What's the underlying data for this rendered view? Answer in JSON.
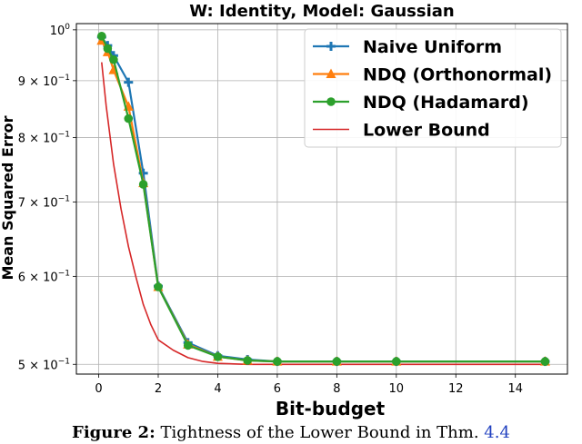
{
  "chart_data": {
    "type": "line",
    "title": "W: Identity, Model: Gaussian",
    "xlabel": "Bit-budget",
    "ylabel": "Mean Squared Error",
    "xlim": [
      -0.75,
      15.75
    ],
    "ylim": [
      0.49,
      1.013
    ],
    "yscale": "log",
    "grid": true,
    "legend_position": "top-right",
    "xticks": [
      0,
      2,
      4,
      6,
      8,
      10,
      12,
      14
    ],
    "yticks": [
      {
        "value": 1.0,
        "base": "10",
        "exp": "0"
      },
      {
        "value": 0.9,
        "base": "9 × 10",
        "exp": "−1"
      },
      {
        "value": 0.8,
        "base": "8 × 10",
        "exp": "−1"
      },
      {
        "value": 0.7,
        "base": "7 × 10",
        "exp": "−1"
      },
      {
        "value": 0.6,
        "base": "6 × 10",
        "exp": "−1"
      },
      {
        "value": 0.5,
        "base": "5 × 10",
        "exp": "−1"
      }
    ],
    "series": [
      {
        "name": "Naive Uniform",
        "color": "#1f77b4",
        "marker": "plus",
        "x": [
          0.1,
          0.3,
          0.5,
          1,
          1.5,
          2,
          3,
          4,
          5,
          6,
          8,
          10,
          15
        ],
        "y": [
          0.985,
          0.968,
          0.948,
          0.897,
          0.743,
          0.588,
          0.523,
          0.509,
          0.505,
          0.503,
          0.503,
          0.503,
          0.503
        ]
      },
      {
        "name": "NDQ (Orthonormal)",
        "color": "#ff7f0e",
        "marker": "triangle",
        "x": [
          0.1,
          0.3,
          0.5,
          1,
          1.5,
          2,
          3,
          4,
          5,
          6,
          8,
          10,
          15
        ],
        "y": [
          0.978,
          0.955,
          0.92,
          0.853,
          0.728,
          0.587,
          0.521,
          0.508,
          0.504,
          0.503,
          0.503,
          0.503,
          0.503
        ]
      },
      {
        "name": "NDQ (Hadamard)",
        "color": "#2ca02c",
        "marker": "circle",
        "x": [
          0.1,
          0.3,
          0.5,
          1,
          1.5,
          2,
          3,
          4,
          5,
          6,
          8,
          10,
          15
        ],
        "y": [
          0.987,
          0.962,
          0.94,
          0.832,
          0.726,
          0.587,
          0.52,
          0.508,
          0.504,
          0.503,
          0.503,
          0.503,
          0.503
        ]
      },
      {
        "name": "Lower Bound",
        "color": "#d62728",
        "marker": "none",
        "x": [
          0.1,
          0.25,
          0.5,
          0.75,
          1,
          1.25,
          1.5,
          1.75,
          2,
          2.5,
          3,
          3.5,
          4,
          5,
          6,
          8,
          10,
          12,
          15
        ],
        "y": [
          0.935,
          0.855,
          0.757,
          0.69,
          0.638,
          0.599,
          0.566,
          0.543,
          0.526,
          0.515,
          0.507,
          0.503,
          0.501,
          0.5,
          0.5,
          0.5,
          0.5,
          0.5,
          0.5
        ]
      }
    ]
  },
  "caption": {
    "label": "Figure 2:",
    "text": "Tightness of the Lower Bound in Thm.",
    "ref": "4.4"
  }
}
